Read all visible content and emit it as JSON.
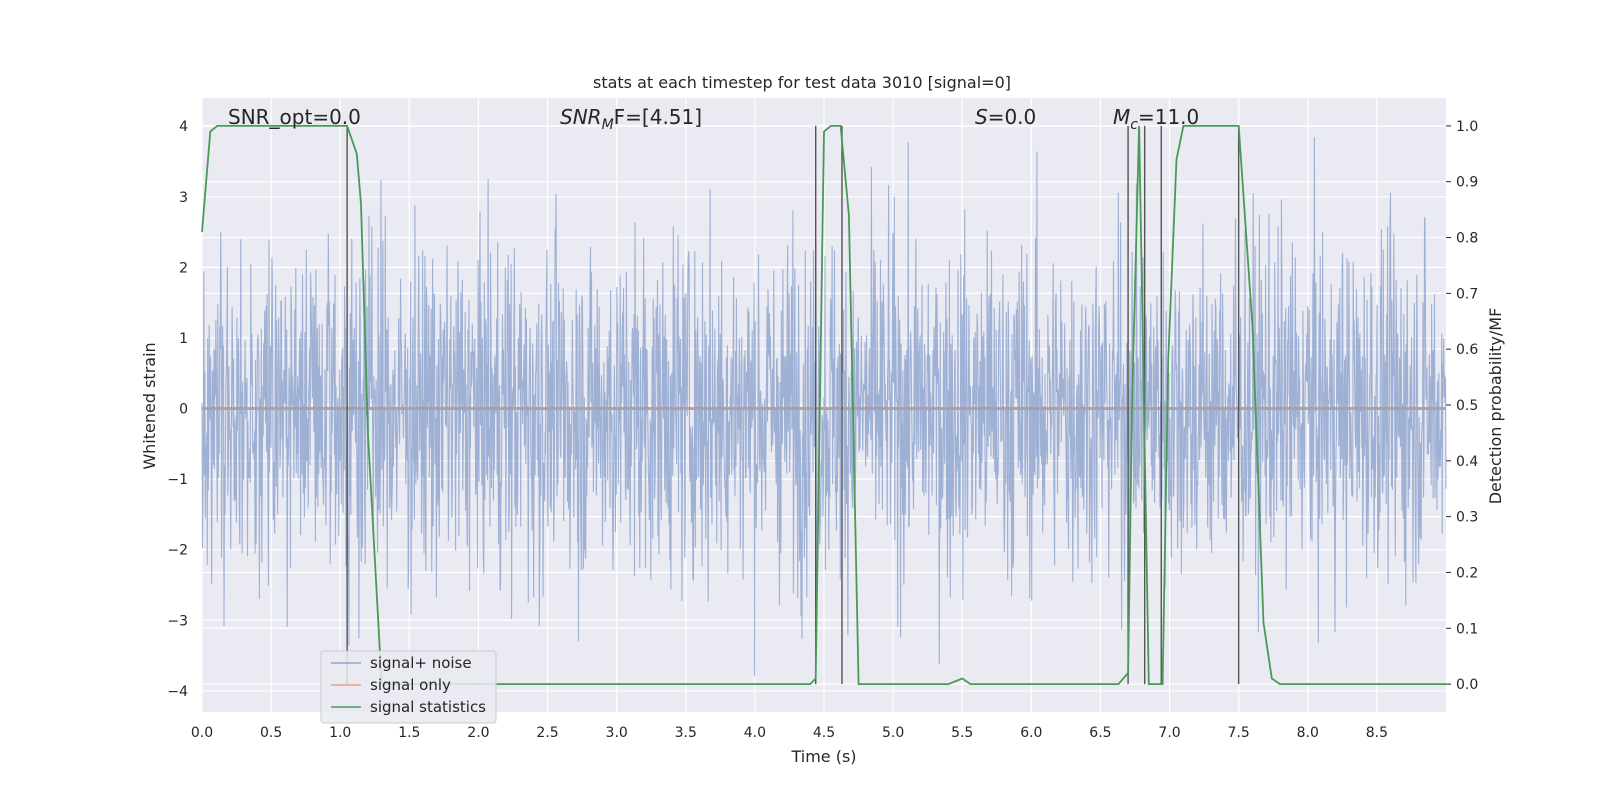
{
  "chart_data": {
    "type": "line",
    "title": "stats at each timestep for test data 3010 [signal=0]",
    "xlabel": "Time (s)",
    "ylabel": "Whitened strain",
    "y2label": "Detection probability/MF",
    "xlim": [
      0.0,
      9.0
    ],
    "ylim": [
      -4.3,
      4.4
    ],
    "y2lim": [
      -0.05,
      1.05
    ],
    "x_ticks": [
      "0.0",
      "0.5",
      "1.0",
      "1.5",
      "2.0",
      "2.5",
      "3.0",
      "3.5",
      "4.0",
      "4.5",
      "5.0",
      "5.5",
      "6.0",
      "6.5",
      "7.0",
      "7.5",
      "8.0",
      "8.5"
    ],
    "y_ticks": [
      "4",
      "3",
      "2",
      "1",
      "0",
      "−1",
      "−2",
      "−3",
      "−4"
    ],
    "y2_ticks": [
      "1.0",
      "0.9",
      "0.8",
      "0.7",
      "0.6",
      "0.5",
      "0.4",
      "0.3",
      "0.2",
      "0.1",
      "0.0"
    ],
    "grid": true,
    "legend_position": "lower-left",
    "annotations": {
      "snr_opt": "SNR_opt=0.0",
      "snr_mf_main": "SNR",
      "snr_mf_sub": "M",
      "snr_mf_tail": "F=[4.51]",
      "s_main": "S",
      "s_tail": "=0.0",
      "mc_main": "M",
      "mc_sub": "c",
      "mc_tail": "=11.0"
    },
    "series": [
      {
        "name": "signal+ noise",
        "color": "#91a6cf",
        "description_type": "noise",
        "typical_amplitude": 1.2,
        "peak_amplitude": 3.9,
        "x_range": [
          0.0,
          9.0
        ]
      },
      {
        "name": "signal only",
        "color": "#e8a17f",
        "x": [
          0.0,
          9.0
        ],
        "y": [
          0.0,
          0.0
        ]
      },
      {
        "name": "signal statistics",
        "color": "#4a9a57",
        "axis": "right",
        "x": [
          0.0,
          0.06,
          0.11,
          0.2,
          1.0,
          1.05,
          1.12,
          1.15,
          1.2,
          1.3,
          1.5,
          2.0,
          3.0,
          4.0,
          4.4,
          4.44,
          4.5,
          4.55,
          4.62,
          4.68,
          4.75,
          4.85,
          5.0,
          5.4,
          5.5,
          5.56,
          5.7,
          6.0,
          6.5,
          6.63,
          6.7,
          6.73,
          6.78,
          6.85,
          6.93,
          6.95,
          6.99,
          7.05,
          7.1,
          7.2,
          7.5,
          7.6,
          7.68,
          7.74,
          7.8,
          8.0,
          8.5,
          9.0
        ],
        "y": [
          0.81,
          0.99,
          1.0,
          1.0,
          1.0,
          1.0,
          0.95,
          0.86,
          0.45,
          0.0,
          0.0,
          0.0,
          0.0,
          0.0,
          0.0,
          0.01,
          0.99,
          1.0,
          1.0,
          0.84,
          0.0,
          0.0,
          0.0,
          0.0,
          0.01,
          0.0,
          0.0,
          0.0,
          0.0,
          0.0,
          0.02,
          0.51,
          1.0,
          0.0,
          0.0,
          0.0,
          0.58,
          0.94,
          1.0,
          1.0,
          1.0,
          0.64,
          0.11,
          0.01,
          0.0,
          0.0,
          0.0,
          0.0
        ]
      }
    ],
    "vertical_lines_x": [
      1.05,
      4.44,
      4.63,
      6.7,
      6.82,
      6.94,
      7.5
    ],
    "legend": [
      {
        "label": "signal+ noise",
        "color": "#91a6cf"
      },
      {
        "label": "signal only",
        "color": "#e8a17f"
      },
      {
        "label": "signal statistics",
        "color": "#4a9a57"
      }
    ]
  }
}
